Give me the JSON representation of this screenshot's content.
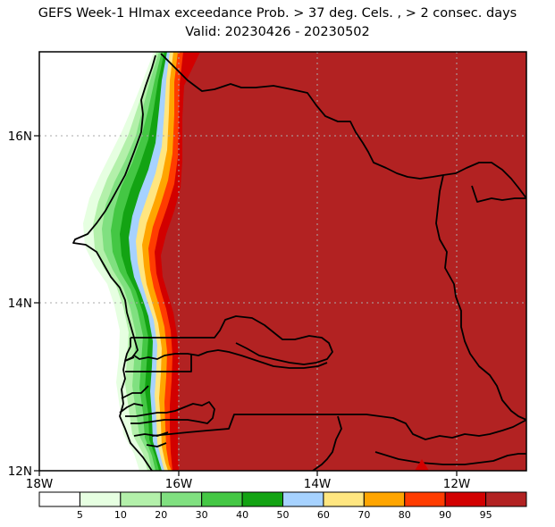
{
  "title": {
    "line1": "GEFS Week-1 HImax exceedance Prob. > 37 deg. Cels. , > 2 consec. days",
    "line2": "Valid: 20230426 - 20230502"
  },
  "map": {
    "region": "Senegal / The Gambia",
    "lon_range": [
      -18,
      -11
    ],
    "lat_range": [
      12,
      17
    ],
    "x_ticks": [
      {
        "value": -18,
        "label": "18W"
      },
      {
        "value": -16,
        "label": "16W"
      },
      {
        "value": -14,
        "label": "14W"
      },
      {
        "value": -12,
        "label": "12W"
      }
    ],
    "y_ticks": [
      {
        "value": 12,
        "label": "12N"
      },
      {
        "value": 14,
        "label": "14N"
      },
      {
        "value": 16,
        "label": "16N"
      }
    ],
    "grid": "dotted"
  },
  "colorbar": {
    "labels": [
      "5",
      "10",
      "20",
      "30",
      "40",
      "50",
      "60",
      "70",
      "80",
      "90",
      "95"
    ],
    "colors": [
      "#ffffff",
      "#e6ffe1",
      "#b3f0aa",
      "#80e080",
      "#44c744",
      "#13a313",
      "#a6d2ff",
      "#ffe680",
      "#ffa500",
      "#ff3c00",
      "#d20000",
      "#b22222"
    ]
  },
  "icons": {
    "country-borders": "map-border-lines"
  }
}
